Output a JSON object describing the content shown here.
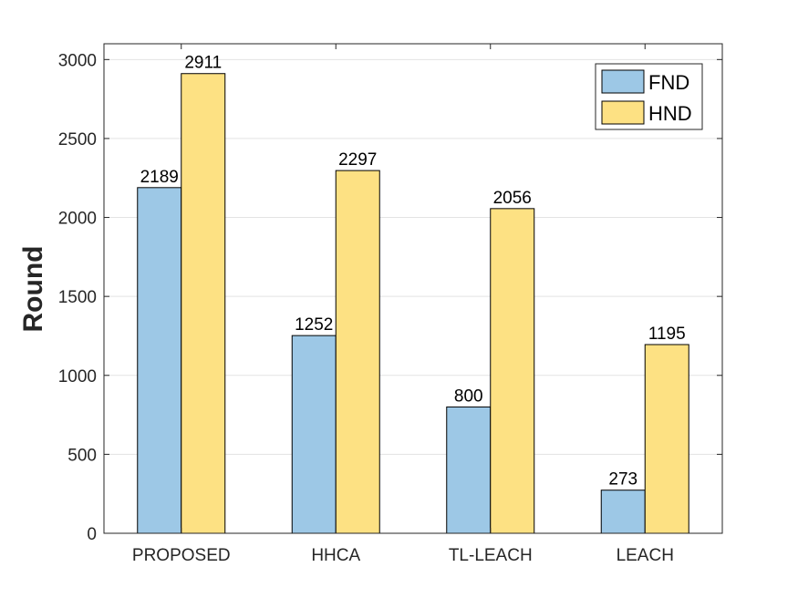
{
  "chart_data": {
    "type": "bar",
    "title": "",
    "xlabel": "",
    "ylabel": "Round",
    "categories": [
      "PROPOSED",
      "HHCA",
      "TL-LEACH",
      "LEACH"
    ],
    "series": [
      {
        "name": "FND",
        "values": [
          2189,
          1252,
          800,
          273
        ],
        "color": "#9dc8e6"
      },
      {
        "name": "HND",
        "values": [
          2911,
          2297,
          2056,
          1195
        ],
        "color": "#fde183"
      }
    ],
    "ylim": [
      0,
      3100
    ],
    "yticks": [
      0,
      500,
      1000,
      1500,
      2000,
      2500,
      3000
    ],
    "grid": true,
    "legend_position": "top-right",
    "data_labels": true
  }
}
